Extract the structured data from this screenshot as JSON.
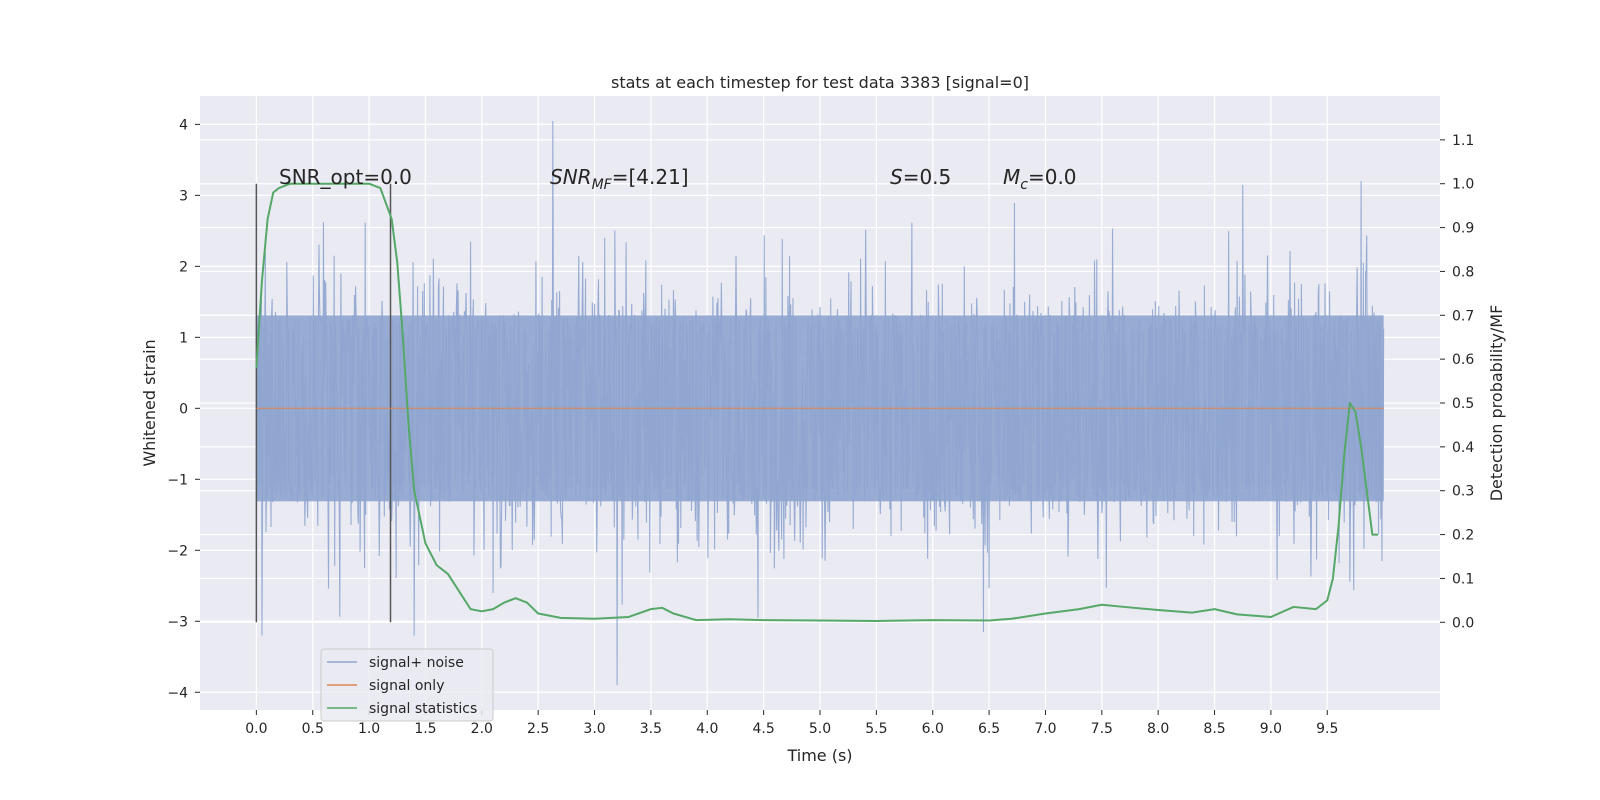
{
  "chart_data": {
    "type": "line",
    "title": "stats at each timestep for test data 3383 [signal=0]",
    "xlabel": "Time (s)",
    "ylabel": "Whitened strain",
    "y2label": "Detection probability/MF",
    "xlim": [
      -0.5,
      10.5
    ],
    "ylim": [
      -4.25,
      4.4
    ],
    "y2lim": [
      -0.2,
      1.2
    ],
    "x_ticks": [
      "0.0",
      "0.5",
      "1.0",
      "1.5",
      "2.0",
      "2.5",
      "3.0",
      "3.5",
      "4.0",
      "4.5",
      "5.0",
      "5.5",
      "6.0",
      "6.5",
      "7.0",
      "7.5",
      "8.0",
      "8.5",
      "9.0",
      "9.5"
    ],
    "y_ticks": [
      "4",
      "3",
      "2",
      "1",
      "0",
      "−1",
      "−2",
      "−3",
      "−4"
    ],
    "y2_ticks": [
      "1.1",
      "1.0",
      "0.9",
      "0.8",
      "0.7",
      "0.6",
      "0.5",
      "0.4",
      "0.3",
      "0.2",
      "0.1",
      "0.0"
    ],
    "grid": true,
    "legend_position": "lower-left",
    "annotations": {
      "snr_opt": "SNR_opt=0.0",
      "snr_mf_prefix": "SNR",
      "snr_mf_sub": "MF",
      "snr_mf_rest": "=[4.21]",
      "s_var": "S",
      "s_rest": "=0.5",
      "mc_var": "M",
      "mc_sub": "c",
      "mc_rest": "=0.0"
    },
    "vertical_markers_x": [
      0.0,
      1.19
    ],
    "series": [
      {
        "name": "signal+ noise",
        "axis": "left",
        "color": "#8fa5cf",
        "description": "noise spanning approximately -1.3 to 1.3 with spikes to about +4.1 and -3.9",
        "x_range": [
          0.0,
          10.0
        ],
        "spikes": [
          [
            2.63,
            4.05
          ],
          [
            3.2,
            -3.9
          ],
          [
            0.05,
            -3.2
          ],
          [
            1.4,
            -3.2
          ],
          [
            8.75,
            3.15
          ],
          [
            9.8,
            3.2
          ],
          [
            4.45,
            -2.95
          ],
          [
            6.45,
            -3.15
          ]
        ]
      },
      {
        "name": "signal only",
        "axis": "left",
        "color": "#dd8452",
        "x": [
          0.0,
          10.0
        ],
        "values": [
          0.0,
          0.0
        ]
      },
      {
        "name": "signal statistics",
        "axis": "right",
        "color": "#55a868",
        "x": [
          0.0,
          0.05,
          0.1,
          0.15,
          0.2,
          0.3,
          0.5,
          0.8,
          1.0,
          1.1,
          1.2,
          1.25,
          1.3,
          1.35,
          1.4,
          1.5,
          1.6,
          1.7,
          1.8,
          1.9,
          2.0,
          2.1,
          2.2,
          2.3,
          2.4,
          2.5,
          2.7,
          3.0,
          3.3,
          3.5,
          3.6,
          3.7,
          3.9,
          4.2,
          4.5,
          5.0,
          5.5,
          6.0,
          6.5,
          6.7,
          7.0,
          7.3,
          7.5,
          7.7,
          8.0,
          8.3,
          8.5,
          8.7,
          9.0,
          9.2,
          9.4,
          9.5,
          9.55,
          9.6,
          9.65,
          9.7,
          9.75,
          9.8,
          9.85,
          9.9,
          9.95
        ],
        "values": [
          0.58,
          0.78,
          0.92,
          0.98,
          0.99,
          1.0,
          1.0,
          1.0,
          1.0,
          0.99,
          0.92,
          0.82,
          0.65,
          0.45,
          0.3,
          0.18,
          0.13,
          0.11,
          0.07,
          0.03,
          0.025,
          0.03,
          0.045,
          0.055,
          0.045,
          0.02,
          0.01,
          0.008,
          0.012,
          0.03,
          0.033,
          0.02,
          0.005,
          0.007,
          0.005,
          0.004,
          0.003,
          0.005,
          0.004,
          0.008,
          0.02,
          0.03,
          0.04,
          0.035,
          0.028,
          0.022,
          0.03,
          0.018,
          0.012,
          0.035,
          0.03,
          0.05,
          0.1,
          0.22,
          0.38,
          0.5,
          0.48,
          0.4,
          0.3,
          0.2,
          0.2
        ]
      }
    ]
  }
}
